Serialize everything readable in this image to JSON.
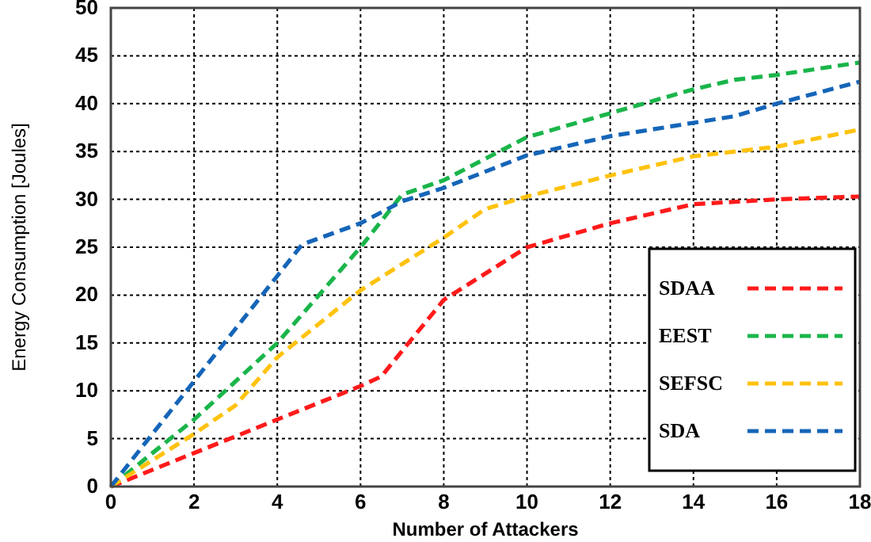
{
  "chart_data": {
    "type": "line",
    "xlabel": "Number of Attackers",
    "ylabel": "Energy Consumption [Joules]",
    "xlim": [
      0,
      18
    ],
    "xticks": [
      0,
      2,
      4,
      6,
      8,
      10,
      12,
      14,
      16,
      18
    ],
    "ylim": [
      0,
      50
    ],
    "yticks": [
      0,
      5,
      10,
      15,
      20,
      25,
      30,
      35,
      40,
      45,
      50
    ],
    "grid": true,
    "legend": "bottom right",
    "line_style": "dashed",
    "series": [
      {
        "name": "SDAA",
        "color": "#ff1a1a",
        "x": [
          0,
          2,
          4,
          6,
          6.5,
          8,
          10,
          12,
          14,
          16,
          18
        ],
        "values": [
          0,
          3.5,
          7,
          10.5,
          11.5,
          19.5,
          25,
          27.5,
          29.5,
          30,
          30.3
        ]
      },
      {
        "name": "EEST",
        "color": "#1ab54a",
        "x": [
          0,
          2,
          4,
          6,
          7,
          8,
          10,
          12,
          14,
          15,
          16,
          18
        ],
        "values": [
          0,
          7,
          15,
          25,
          30.5,
          32,
          36.5,
          39,
          41.5,
          42.5,
          43,
          44.3
        ]
      },
      {
        "name": "SEFSC",
        "color": "#ffc20e",
        "x": [
          0,
          2,
          3,
          4,
          6,
          8,
          9,
          10,
          12,
          14,
          16,
          18
        ],
        "values": [
          0,
          5.5,
          8.5,
          13.5,
          20.5,
          26,
          29,
          30.3,
          32.5,
          34.5,
          35.5,
          37.3
        ]
      },
      {
        "name": "SDA",
        "color": "#1565b8",
        "x": [
          0,
          2,
          4,
          4.6,
          6,
          7,
          8,
          10,
          12,
          14,
          15,
          16,
          18
        ],
        "values": [
          0,
          11,
          22,
          25.3,
          27.5,
          29.8,
          31.2,
          34.6,
          36.6,
          38,
          38.7,
          40,
          42.3
        ]
      }
    ]
  }
}
